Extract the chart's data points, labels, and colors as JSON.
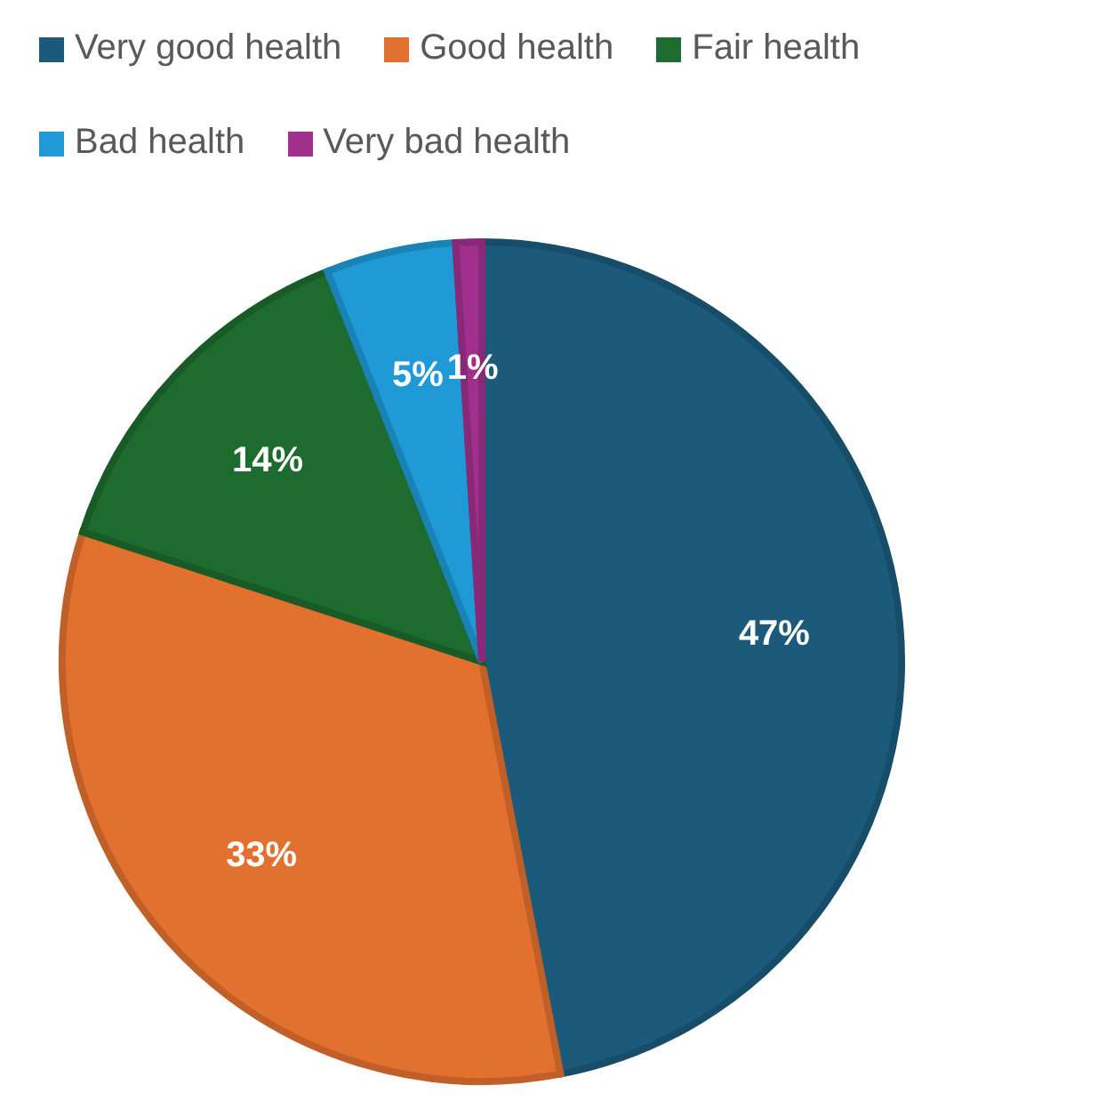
{
  "chart_data": {
    "type": "pie",
    "categories": [
      "Very good health",
      "Good health",
      "Fair health",
      "Bad health",
      "Very bad health"
    ],
    "values": [
      47,
      33,
      14,
      5,
      1
    ],
    "value_labels": [
      "47%",
      "33%",
      "14%",
      "5%",
      "1%"
    ],
    "colors": [
      "#1b5a7a",
      "#e2702f",
      "#1d6b2e",
      "#1f9ad6",
      "#a0308c"
    ],
    "legend": "top"
  }
}
